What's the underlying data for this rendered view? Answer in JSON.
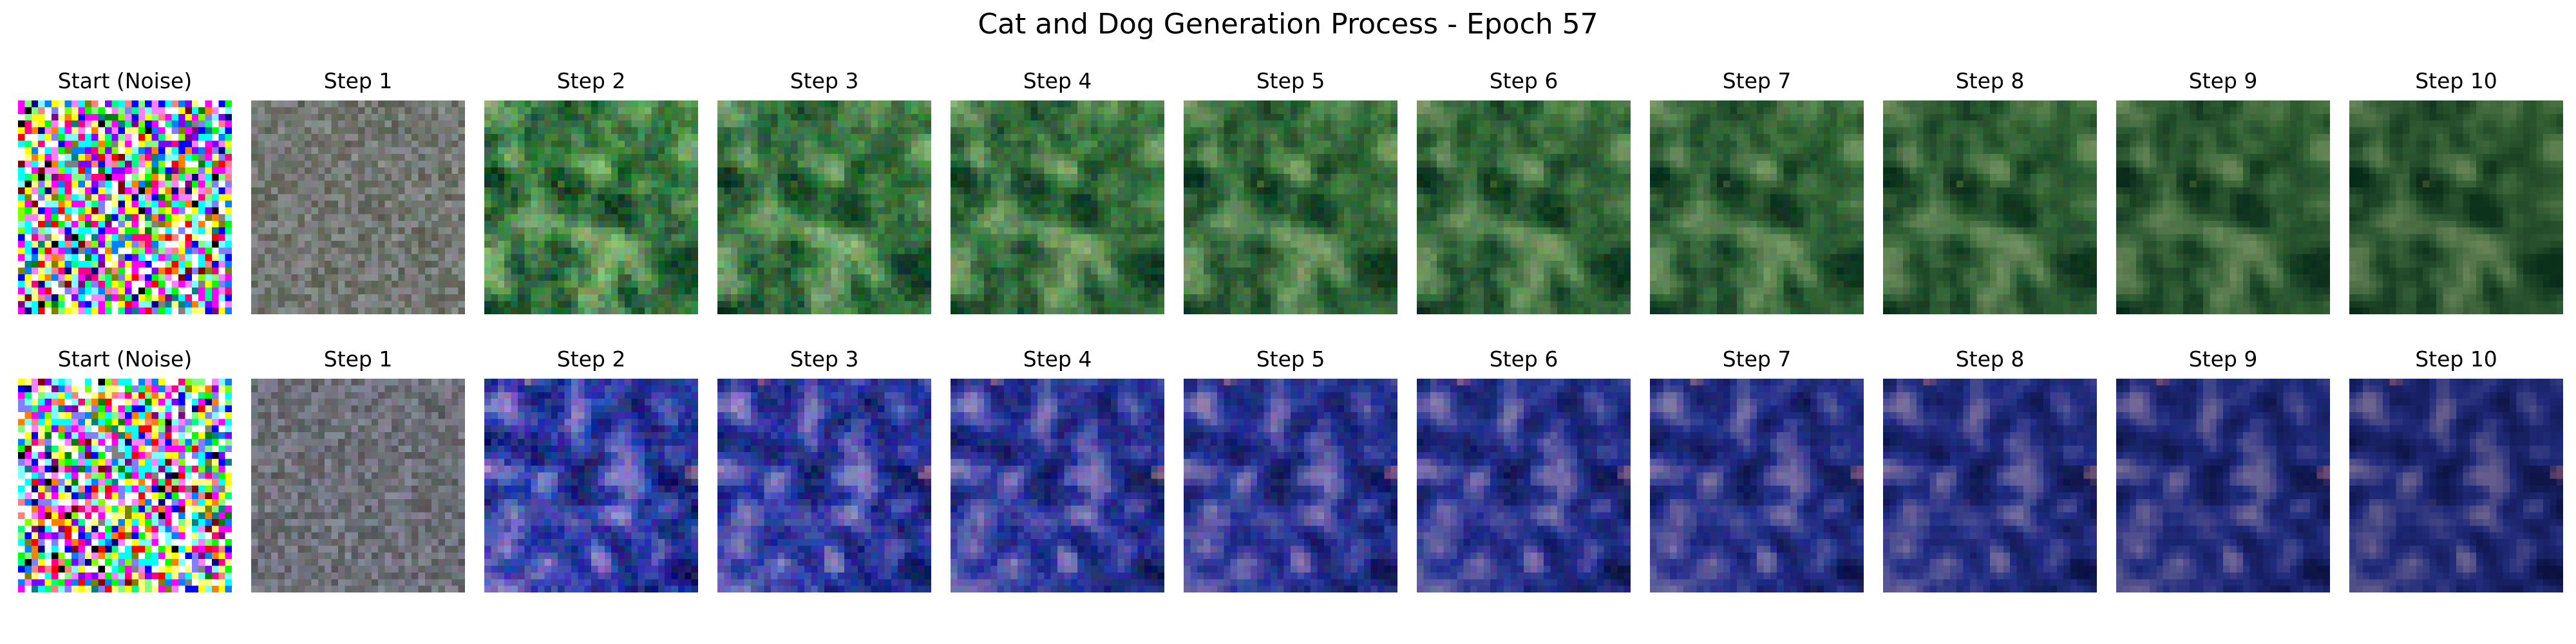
{
  "figure": {
    "title": "Cat and Dog Generation Process - Epoch 57"
  },
  "rows": [
    {
      "name": "cat-row",
      "palette": {
        "dark": "#0b3a22",
        "mid": "#3f7a45",
        "light": "#8fb57a",
        "accent": "#d8d36a",
        "sky": "#5aa24a"
      },
      "panels": [
        {
          "label": "Start (Noise)",
          "stage": 0
        },
        {
          "label": "Step 1",
          "stage": 1
        },
        {
          "label": "Step 2",
          "stage": 2
        },
        {
          "label": "Step 3",
          "stage": 3
        },
        {
          "label": "Step 4",
          "stage": 4
        },
        {
          "label": "Step 5",
          "stage": 5
        },
        {
          "label": "Step 6",
          "stage": 6
        },
        {
          "label": "Step 7",
          "stage": 7
        },
        {
          "label": "Step 8",
          "stage": 8
        },
        {
          "label": "Step 9",
          "stage": 9
        },
        {
          "label": "Step 10",
          "stage": 10
        }
      ]
    },
    {
      "name": "dog-row",
      "palette": {
        "dark": "#101858",
        "mid": "#2a3aa8",
        "light": "#9a8cc8",
        "accent": "#c07a96",
        "sky": "#2a3aa0"
      },
      "panels": [
        {
          "label": "Start (Noise)",
          "stage": 0
        },
        {
          "label": "Step 1",
          "stage": 1
        },
        {
          "label": "Step 2",
          "stage": 2
        },
        {
          "label": "Step 3",
          "stage": 3
        },
        {
          "label": "Step 4",
          "stage": 4
        },
        {
          "label": "Step 5",
          "stage": 5
        },
        {
          "label": "Step 6",
          "stage": 6
        },
        {
          "label": "Step 7",
          "stage": 7
        },
        {
          "label": "Step 8",
          "stage": 8
        },
        {
          "label": "Step 9",
          "stage": 9
        },
        {
          "label": "Step 10",
          "stage": 10
        }
      ]
    }
  ]
}
